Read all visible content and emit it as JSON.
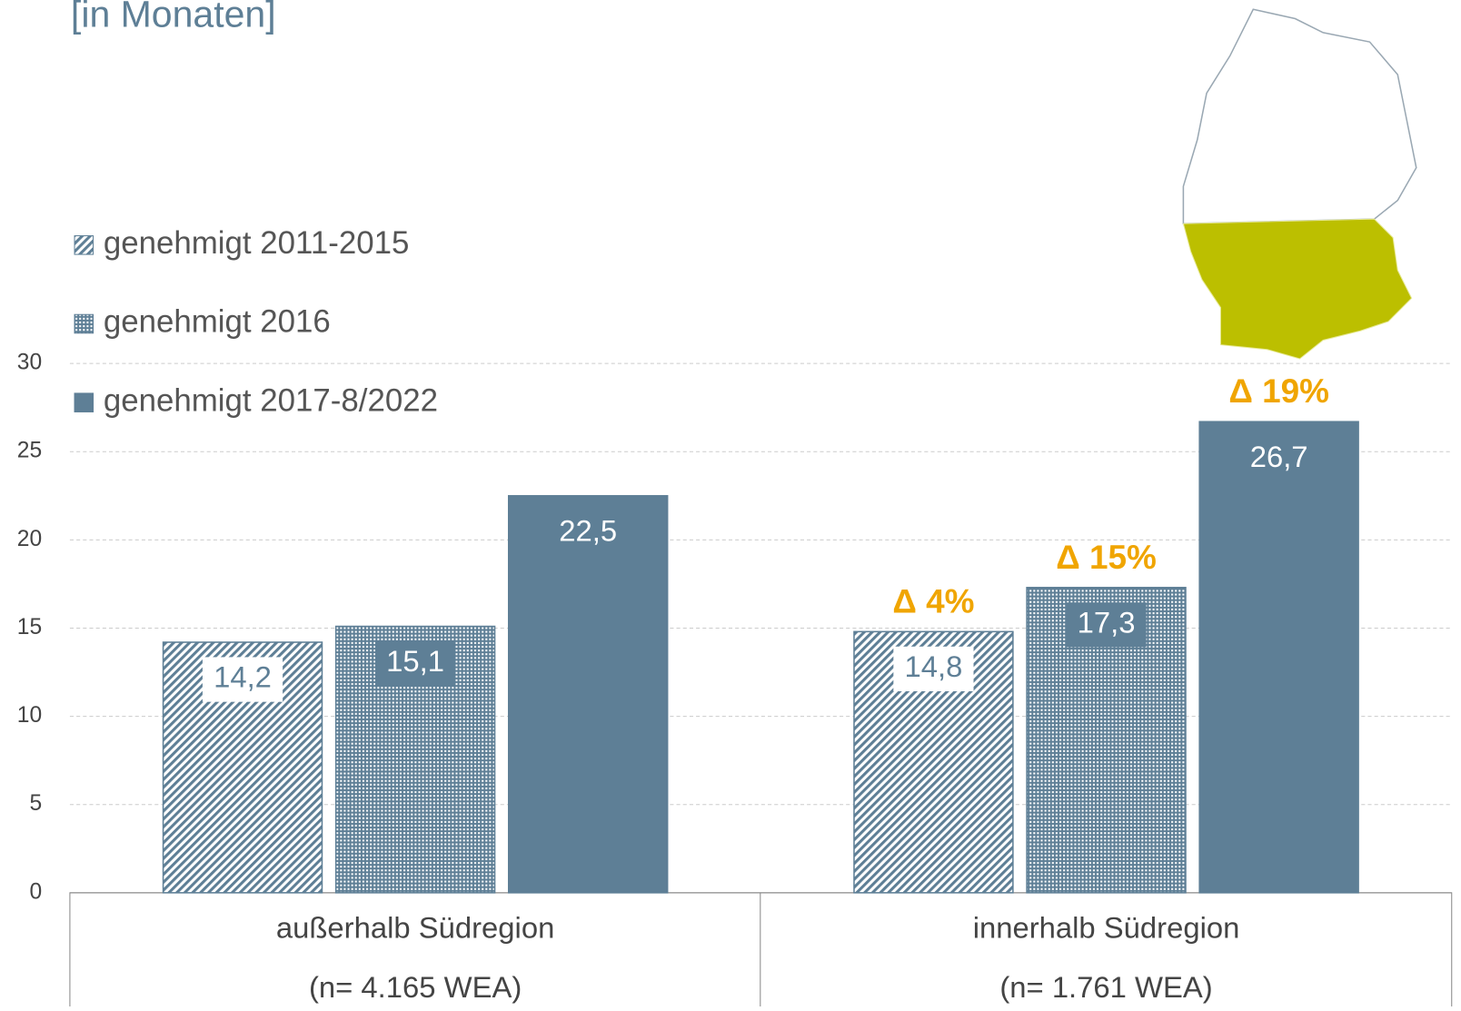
{
  "chart_data": {
    "type": "bar",
    "title": "[in Monaten]",
    "categories": [
      "außerhalb Südregion",
      "innerhalb Südregion"
    ],
    "category_notes": [
      "(n= 4.165 WEA)",
      "(n= 1.761 WEA)"
    ],
    "series": [
      {
        "name": "genehmigt 2011-2015",
        "color": "#5e7f96",
        "pattern": "stripes",
        "values": [
          14.2,
          14.8
        ],
        "value_labels": [
          "14,2",
          "14,8"
        ],
        "annotations": [
          null,
          "Δ 4%"
        ]
      },
      {
        "name": "genehmigt 2016",
        "color": "#5e7f96",
        "pattern": "dots",
        "values": [
          15.1,
          17.3
        ],
        "value_labels": [
          "15,1",
          "17,3"
        ],
        "annotations": [
          null,
          "Δ 15%"
        ]
      },
      {
        "name": "genehmigt 2017-8/2022",
        "color": "#5e7f96",
        "pattern": "solid",
        "values": [
          22.5,
          26.7
        ],
        "value_labels": [
          "22,5",
          "26,7"
        ],
        "annotations": [
          null,
          "Δ 19%"
        ]
      }
    ],
    "ylim": [
      0,
      30
    ],
    "yticks": [
      0,
      5,
      10,
      15,
      20,
      25,
      30
    ],
    "grid": true,
    "legend": "top-left"
  }
}
